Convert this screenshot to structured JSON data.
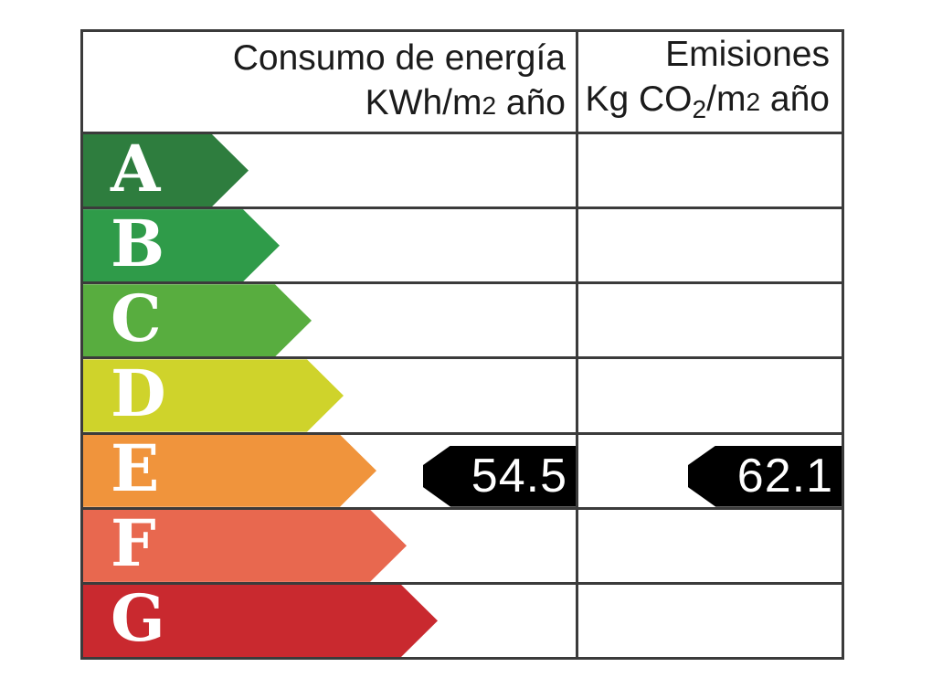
{
  "header": {
    "consumption": {
      "title": "Consumo de energía",
      "unit": {
        "pre": "KWh/m",
        "exp": "2",
        "post": " año"
      }
    },
    "emissions": {
      "title": "Emisiones",
      "unit": {
        "pre": "Kg CO",
        "sub": "2",
        "mid": "/m",
        "exp": "2",
        "post": " año"
      }
    }
  },
  "scale": {
    "rows": [
      {
        "letter": "A",
        "color": "#2e7d3e"
      },
      {
        "letter": "B",
        "color": "#2f9b49"
      },
      {
        "letter": "C",
        "color": "#58ad3f"
      },
      {
        "letter": "D",
        "color": "#cfd32b"
      },
      {
        "letter": "E",
        "color": "#f0943c"
      },
      {
        "letter": "F",
        "color": "#e8684f"
      },
      {
        "letter": "G",
        "color": "#c9292f"
      }
    ]
  },
  "indicators": {
    "consumption_value": "54.5",
    "emissions_value": "62.1",
    "arrow_color": "#000000",
    "text_color": "#ffffff"
  },
  "style_colors": {
    "border": "#3b3b3b",
    "background": "#ffffff",
    "letter": "#ffffff",
    "header_text": "#1b1b1b"
  },
  "chart_data": {
    "type": "table",
    "columns": [
      "Consumo de energía KWh/m2 año",
      "Emisiones Kg CO2/m2 año"
    ],
    "categories": [
      "A",
      "B",
      "C",
      "D",
      "E",
      "F",
      "G"
    ],
    "band_colors": [
      "#2e7d3e",
      "#2f9b49",
      "#58ad3f",
      "#cfd32b",
      "#f0943c",
      "#e8684f",
      "#c9292f"
    ],
    "values": {
      "consumo_kwh_m2_ano": 54.5,
      "emisiones_kg_co2_m2_ano": 62.1
    },
    "rating_row": "E",
    "legend_position": "none",
    "grid": true
  }
}
